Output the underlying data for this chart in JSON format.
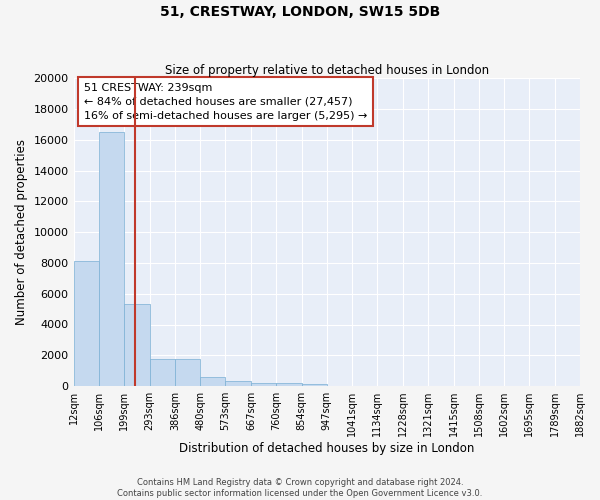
{
  "title": "51, CRESTWAY, LONDON, SW15 5DB",
  "subtitle": "Size of property relative to detached houses in London",
  "xlabel": "Distribution of detached houses by size in London",
  "ylabel": "Number of detached properties",
  "footer_line1": "Contains HM Land Registry data © Crown copyright and database right 2024.",
  "footer_line2": "Contains public sector information licensed under the Open Government Licence v3.0.",
  "annotation_line1": "51 CRESTWAY: 239sqm",
  "annotation_line2": "← 84% of detached houses are smaller (27,457)",
  "annotation_line3": "16% of semi-detached houses are larger (5,295) →",
  "property_size": 239,
  "bar_edges": [
    12,
    106,
    199,
    293,
    386,
    480,
    573,
    667,
    760,
    854,
    947,
    1041,
    1134,
    1228,
    1321,
    1415,
    1508,
    1602,
    1695,
    1789,
    1882
  ],
  "bar_heights": [
    8100,
    16500,
    5350,
    1750,
    1750,
    600,
    350,
    200,
    170,
    130,
    0,
    0,
    0,
    0,
    0,
    0,
    0,
    0,
    0,
    0
  ],
  "bar_color": "#c5d9ef",
  "bar_edge_color": "#7aafd4",
  "vline_color": "#c0392b",
  "vline_x": 239,
  "annotation_box_color": "#c0392b",
  "background_color": "#e8eef8",
  "fig_background_color": "#f5f5f5",
  "grid_color": "#ffffff",
  "ylim": [
    0,
    20000
  ],
  "yticks": [
    0,
    2000,
    4000,
    6000,
    8000,
    10000,
    12000,
    14000,
    16000,
    18000,
    20000
  ]
}
